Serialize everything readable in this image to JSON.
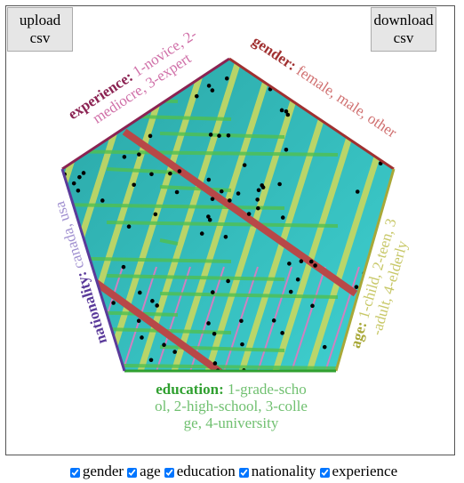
{
  "buttons": {
    "upload": "upload csv",
    "download": "download csv"
  },
  "axes": [
    {
      "label": "experience:",
      "lines": [
        "1-novice, 2-",
        "mediocre, 3-expert"
      ]
    },
    {
      "label": "gender:",
      "lines": [
        "female, male, other"
      ]
    },
    {
      "label": "age:",
      "lines": [
        "1-child, 2-teen, 3",
        "-adult, 4-elderly"
      ]
    },
    {
      "label": "education:",
      "lines": [
        "1-grade-scho",
        "ol, 2-high-school, 3-colle",
        "ge, 4-university"
      ]
    },
    {
      "label": "nationality:",
      "lines": [
        "canada, usa"
      ]
    }
  ],
  "checkboxes": [
    "gender",
    "age",
    "education",
    "nationality",
    "experience"
  ]
}
